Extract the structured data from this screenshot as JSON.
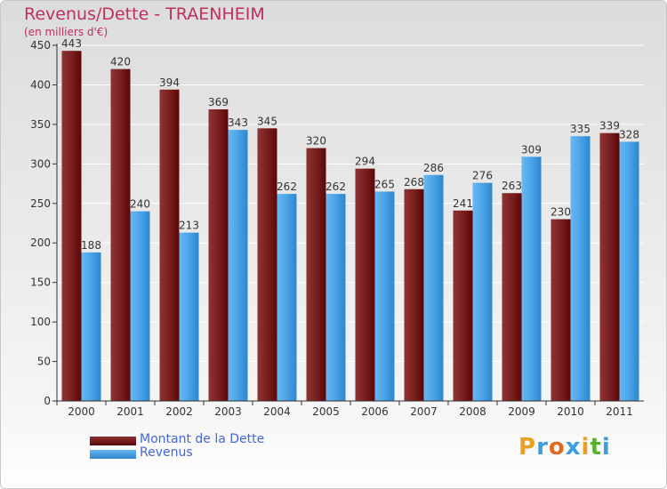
{
  "header": {
    "title": "Revenus/Dette - TRAENHEIM",
    "subtitle": "(en milliers d'€)"
  },
  "legend": {
    "items": [
      {
        "label": "Montant de la Dette",
        "color": "#7a1a1a"
      },
      {
        "label": "Revenus",
        "color": "#4aa3e8"
      }
    ]
  },
  "logo": {
    "letters": [
      "P",
      "r",
      "o",
      "x",
      "i",
      "t",
      "i"
    ],
    "colors": [
      "#e8a020",
      "#3a9ee0",
      "#e06a20",
      "#3a9ee0",
      "#e8a020",
      "#58b030",
      "#3a9ee0"
    ]
  },
  "chart_data": {
    "type": "bar",
    "title": "Revenus/Dette - TRAENHEIM",
    "subtitle": "(en milliers d'€)",
    "categories": [
      "2000",
      "2001",
      "2002",
      "2003",
      "2004",
      "2005",
      "2006",
      "2007",
      "2008",
      "2009",
      "2010",
      "2011"
    ],
    "series": [
      {
        "name": "Montant de la Dette",
        "values": [
          443,
          420,
          394,
          369,
          345,
          320,
          294,
          268,
          241,
          263,
          230,
          339
        ],
        "color": "#7a1a1a"
      },
      {
        "name": "Revenus",
        "values": [
          188,
          240,
          213,
          343,
          262,
          262,
          265,
          286,
          276,
          309,
          335,
          328
        ],
        "color": "#4aa3e8"
      }
    ],
    "ylim": [
      0,
      450
    ],
    "yticks": [
      0,
      50,
      100,
      150,
      200,
      250,
      300,
      350,
      400,
      450
    ],
    "grid": true,
    "legend_position": "bottom-left"
  }
}
